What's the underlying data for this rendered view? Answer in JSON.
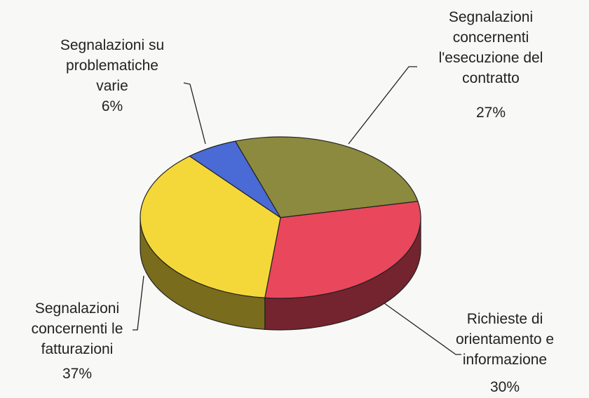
{
  "chart_data": {
    "type": "pie3d",
    "categories": [
      "Segnalazioni\nconcernenti\nl'esecuzione del\ncontratto",
      "Richieste di\norientamento e\ninformazione",
      "Segnalazioni\nconcernenti le\nfatturazioni",
      "Segnalazioni su\nproblematiche\nvarie"
    ],
    "values": [
      27,
      30,
      37,
      6
    ],
    "value_labels": [
      "27%",
      "30%",
      "37%",
      "6%"
    ],
    "colors": [
      "#8c8a3e",
      "#e8475c",
      "#f4d83a",
      "#4a6ad6"
    ]
  }
}
